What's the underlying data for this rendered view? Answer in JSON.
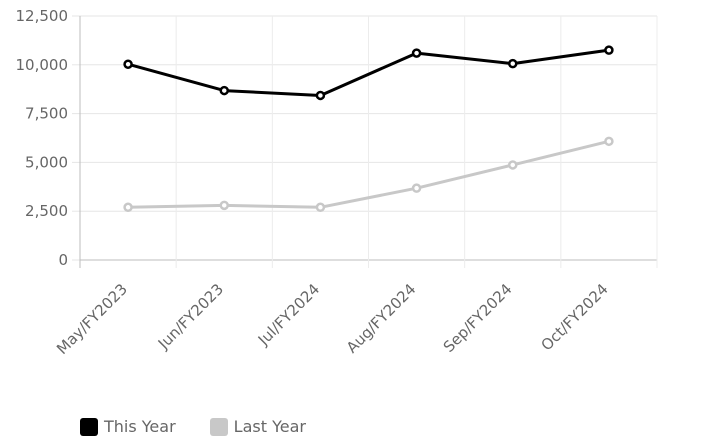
{
  "chart_data": {
    "type": "line",
    "categories": [
      "May/FY2023",
      "Jun/FY2023",
      "Jul/FY2024",
      "Aug/FY2024",
      "Sep/FY2024",
      "Oct/FY2024"
    ],
    "series": [
      {
        "name": "This Year",
        "color": "#000000",
        "values": [
          10030,
          8680,
          8430,
          10600,
          10060,
          10750
        ]
      },
      {
        "name": "Last Year",
        "color": "#c8c8c8",
        "values": [
          2700,
          2800,
          2700,
          3680,
          4870,
          6080
        ]
      }
    ],
    "y_ticks": [
      "0",
      "2,500",
      "5,000",
      "7,500",
      "10,000",
      "12,500"
    ],
    "ylim": [
      0,
      12500
    ],
    "grid": true,
    "legend_position": "bottom-left"
  }
}
